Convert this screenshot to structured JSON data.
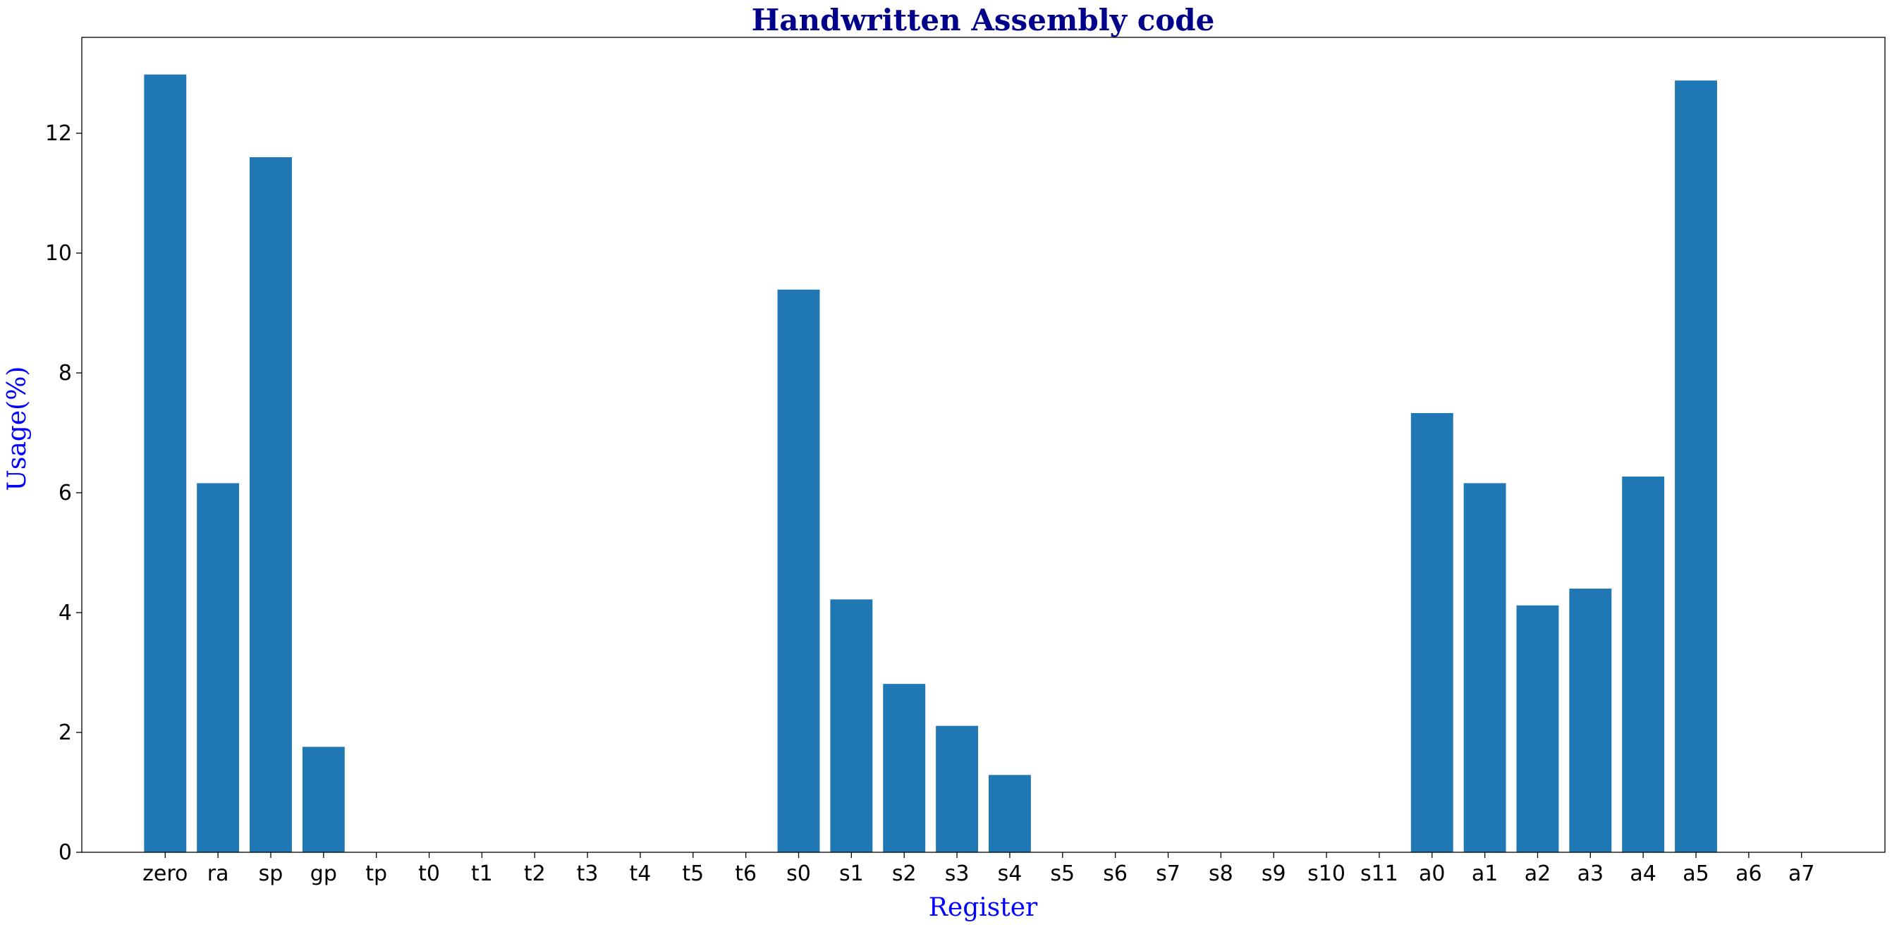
{
  "chart_data": {
    "type": "bar",
    "title": "Handwritten Assembly code",
    "xlabel": "Register",
    "ylabel": "Usage(%)",
    "categories": [
      "zero",
      "ra",
      "sp",
      "gp",
      "tp",
      "t0",
      "t1",
      "t2",
      "t3",
      "t4",
      "t5",
      "t6",
      "s0",
      "s1",
      "s2",
      "s3",
      "s4",
      "s5",
      "s6",
      "s7",
      "s8",
      "s9",
      "s10",
      "s11",
      "a0",
      "a1",
      "a2",
      "a3",
      "a4",
      "a5",
      "a6",
      "a7"
    ],
    "values": [
      12.98,
      6.16,
      11.6,
      1.76,
      0,
      0,
      0,
      0,
      0,
      0,
      0,
      0,
      9.39,
      4.22,
      2.81,
      2.11,
      1.29,
      0,
      0,
      0,
      0,
      0,
      0,
      0,
      7.33,
      6.16,
      4.12,
      4.4,
      6.27,
      12.88,
      0,
      0
    ],
    "ylim": [
      0,
      13.6
    ],
    "yticks": [
      0,
      2,
      4,
      6,
      8,
      10,
      12
    ],
    "grid": false,
    "colors": {
      "bar": "#1f77b4",
      "title": "#00008b",
      "axis_label": "#0000ff",
      "axis": "#000000"
    }
  }
}
